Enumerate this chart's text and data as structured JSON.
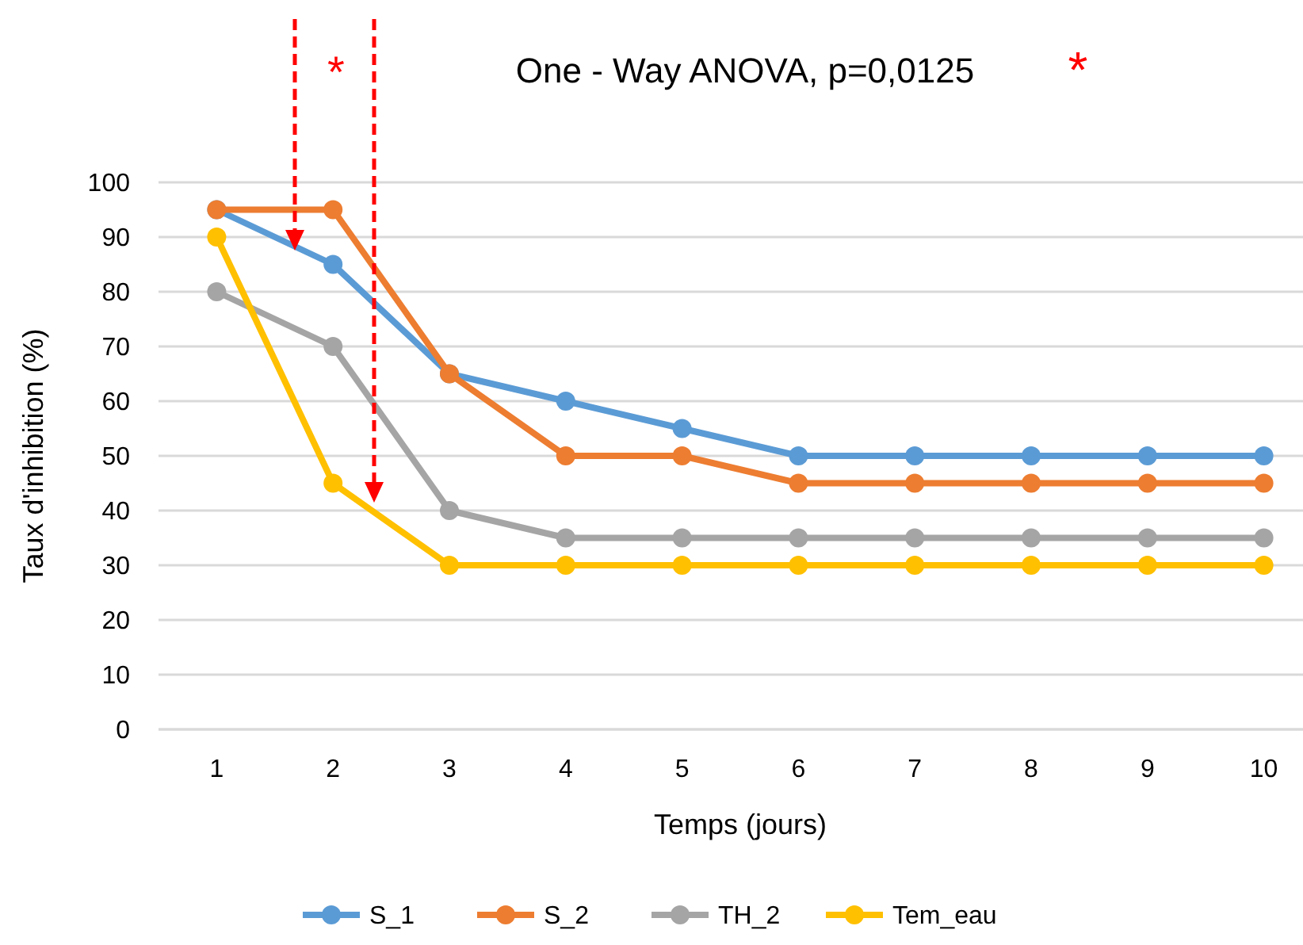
{
  "chart_data": {
    "type": "line",
    "title": "One - Way  ANOVA, p=0,0125",
    "xlabel": "Temps (jours)",
    "ylabel": "Taux d'inhibition (%)",
    "categories": [
      "1",
      "2",
      "3",
      "4",
      "5",
      "6",
      "7",
      "8",
      "9",
      "10"
    ],
    "series": [
      {
        "name": "S_1",
        "color": "#5b9bd5",
        "values": [
          95,
          85,
          65,
          60,
          55,
          50,
          50,
          50,
          50,
          50
        ]
      },
      {
        "name": "S_2",
        "color": "#ed7d31",
        "values": [
          95,
          95,
          65,
          50,
          50,
          45,
          45,
          45,
          45,
          45
        ]
      },
      {
        "name": "TH_2",
        "color": "#a5a5a5",
        "values": [
          80,
          70,
          40,
          35,
          35,
          35,
          35,
          35,
          35,
          35
        ]
      },
      {
        "name": "Tem_eau",
        "color": "#ffc000",
        "values": [
          90,
          45,
          30,
          30,
          30,
          30,
          30,
          30,
          30,
          30
        ]
      }
    ],
    "ylim": [
      0,
      100
    ],
    "yticks": [
      0,
      10,
      20,
      30,
      40,
      50,
      60,
      70,
      80,
      90,
      100
    ],
    "grid": "y",
    "legend": "bottom",
    "marker": "circle",
    "line_style": "solid",
    "annotations": [
      "*",
      "*"
    ]
  }
}
